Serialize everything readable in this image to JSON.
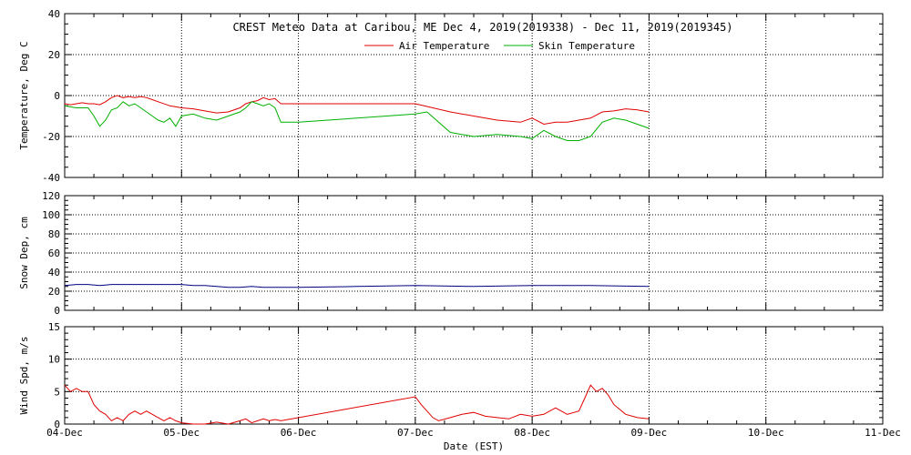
{
  "title": "CREST Meteo Data at Caribou, ME   Dec  4, 2019(2019338) - Dec 11, 2019(2019345)",
  "xlabel": "Date (EST)",
  "x_ticks": [
    "04-Dec",
    "05-Dec",
    "06-Dec",
    "07-Dec",
    "08-Dec",
    "09-Dec",
    "10-Dec",
    "11-Dec"
  ],
  "colors": {
    "air": "#e00000",
    "skin": "#00b000",
    "snow": "#000080",
    "wind": "#e00000",
    "grid": "#000000"
  },
  "chart_data": [
    {
      "type": "line",
      "ylabel": "Temperature, Deg C",
      "ylim": [
        -40,
        40
      ],
      "yticks": [
        "-40",
        "-20",
        "0",
        "20",
        "40"
      ],
      "xlim": [
        0,
        7
      ],
      "x_unit": "days since 04-Dec 00:00 EST",
      "grid": true,
      "legend": "top-center",
      "series": [
        {
          "name": "Air Temperature",
          "color": "#e00000",
          "x": [
            0,
            0.05,
            0.1,
            0.15,
            0.2,
            0.25,
            0.3,
            0.35,
            0.4,
            0.45,
            0.5,
            0.55,
            0.6,
            0.65,
            0.7,
            0.75,
            0.8,
            0.9,
            1.0,
            1.1,
            1.2,
            1.3,
            1.4,
            1.5,
            1.55,
            1.6,
            1.65,
            1.7,
            1.75,
            1.8,
            1.85,
            2.0,
            2.5,
            3.0,
            3.3,
            3.5,
            3.7,
            3.9,
            4.0,
            4.1,
            4.2,
            4.3,
            4.4,
            4.5,
            4.6,
            4.7,
            4.8,
            4.9,
            5.0
          ],
          "y": [
            -4,
            -4.5,
            -4,
            -3.5,
            -4,
            -4,
            -4.5,
            -3,
            -1,
            0,
            -1,
            -0.5,
            -1,
            -0.5,
            -1,
            -2,
            -3,
            -5,
            -6,
            -6.5,
            -7.5,
            -8.5,
            -8,
            -6,
            -4,
            -3,
            -2.5,
            -1,
            -2,
            -1.5,
            -4,
            -4,
            -4,
            -4,
            -8,
            -10,
            -12,
            -13,
            -11,
            -14,
            -13,
            -13,
            -12,
            -11,
            -8,
            -7.5,
            -6.5,
            -7,
            -8
          ]
        },
        {
          "name": "Skin Temperature",
          "color": "#00b000",
          "x": [
            0,
            0.1,
            0.2,
            0.25,
            0.3,
            0.35,
            0.4,
            0.45,
            0.5,
            0.55,
            0.6,
            0.65,
            0.7,
            0.75,
            0.8,
            0.85,
            0.9,
            0.95,
            1.0,
            1.1,
            1.2,
            1.3,
            1.4,
            1.5,
            1.55,
            1.6,
            1.65,
            1.7,
            1.75,
            1.8,
            1.85,
            2.0,
            3.0,
            3.1,
            3.3,
            3.5,
            3.7,
            3.9,
            4.0,
            4.1,
            4.2,
            4.3,
            4.4,
            4.5,
            4.6,
            4.7,
            4.8,
            4.9,
            5.0
          ],
          "y": [
            -5,
            -6,
            -6,
            -10,
            -15,
            -12,
            -7,
            -6,
            -3,
            -5,
            -4,
            -6,
            -8,
            -10,
            -12,
            -13,
            -11,
            -15,
            -10,
            -9,
            -11,
            -12,
            -10,
            -8,
            -6,
            -3,
            -4,
            -5,
            -4,
            -6,
            -13,
            -13,
            -9,
            -8,
            -18,
            -20,
            -19,
            -20,
            -21,
            -17,
            -20,
            -22,
            -22,
            -20,
            -13,
            -11,
            -12,
            -14,
            -16
          ]
        }
      ]
    },
    {
      "type": "line",
      "ylabel": "Snow Dep, cm",
      "ylim": [
        0,
        120
      ],
      "yticks": [
        "0",
        "20",
        "40",
        "60",
        "80",
        "100",
        "120"
      ],
      "xlim": [
        0,
        7
      ],
      "grid": true,
      "series": [
        {
          "color": "#000080",
          "x": [
            0,
            0.1,
            0.2,
            0.3,
            0.4,
            0.5,
            0.6,
            0.7,
            0.8,
            0.9,
            1.0,
            1.1,
            1.2,
            1.3,
            1.4,
            1.45,
            1.5,
            1.6,
            1.7,
            1.8,
            2.0,
            2.5,
            3.0,
            3.5,
            4.0,
            4.5,
            5.0
          ],
          "y": [
            26,
            27,
            27,
            26,
            27,
            27,
            27,
            27,
            27,
            27,
            27,
            26,
            26,
            25,
            24,
            24,
            24,
            25,
            24,
            24,
            24,
            25,
            26,
            25,
            26,
            26,
            25
          ]
        }
      ]
    },
    {
      "type": "line",
      "ylabel": "Wind Spd, m/s",
      "ylim": [
        0,
        15
      ],
      "yticks": [
        "0",
        "5",
        "10",
        "15"
      ],
      "xlim": [
        0,
        7
      ],
      "grid": true,
      "series": [
        {
          "color": "#e00000",
          "x": [
            0,
            0.05,
            0.1,
            0.15,
            0.2,
            0.25,
            0.3,
            0.35,
            0.4,
            0.45,
            0.5,
            0.55,
            0.6,
            0.65,
            0.7,
            0.75,
            0.8,
            0.85,
            0.9,
            0.95,
            1.0,
            1.1,
            1.2,
            1.3,
            1.4,
            1.5,
            1.55,
            1.6,
            1.65,
            1.7,
            1.75,
            1.8,
            1.85,
            3.0,
            3.05,
            3.1,
            3.15,
            3.2,
            3.3,
            3.4,
            3.5,
            3.6,
            3.7,
            3.8,
            3.9,
            4.0,
            4.1,
            4.2,
            4.3,
            4.4,
            4.45,
            4.5,
            4.55,
            4.6,
            4.65,
            4.7,
            4.8,
            4.9,
            5.0
          ],
          "y": [
            6,
            5,
            5.5,
            5,
            5,
            3,
            2,
            1.5,
            0.5,
            1,
            0.5,
            1.5,
            2,
            1.5,
            2,
            1.5,
            1,
            0.5,
            1,
            0.5,
            0.2,
            0,
            0,
            0.3,
            0,
            0.5,
            0.8,
            0.2,
            0.5,
            0.8,
            0.5,
            0.7,
            0.5,
            4.2,
            3,
            2,
            1,
            0.5,
            1,
            1.5,
            1.8,
            1.2,
            1,
            0.8,
            1.5,
            1.2,
            1.5,
            2.5,
            1.5,
            2,
            4,
            6,
            5,
            5.5,
            4.5,
            3,
            1.5,
            1,
            0.8
          ]
        }
      ]
    }
  ]
}
